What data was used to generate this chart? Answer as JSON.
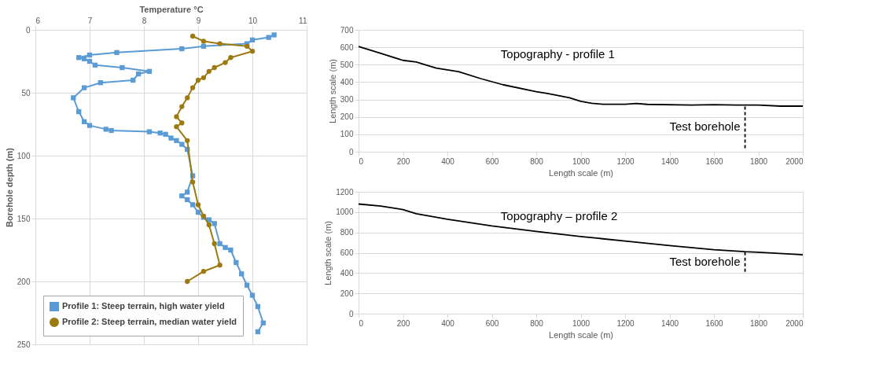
{
  "chart_data": [
    {
      "type": "line",
      "xlabel": "Temperature °C",
      "ylabel": "Borehole depth (m)",
      "xlim": [
        6,
        11
      ],
      "xticks": [
        6,
        7,
        8,
        9,
        10,
        11
      ],
      "ylim": [
        250,
        0
      ],
      "yticks": [
        0,
        50,
        100,
        150,
        200,
        250
      ],
      "grid": true,
      "legend": "bottom left",
      "series": [
        {
          "name": "Profile 1: Steep terrain, high water yield",
          "color": "#5b9bd5",
          "marker": "square",
          "x": [
            10.4,
            10.3,
            10.0,
            9.9,
            9.1,
            8.7,
            7.5,
            7.0,
            6.8,
            6.9,
            7.0,
            7.1,
            7.6,
            8.1,
            7.9,
            7.8,
            7.2,
            6.9,
            6.7,
            6.8,
            6.9,
            7.0,
            7.3,
            7.4,
            8.1,
            8.3,
            8.4,
            8.5,
            8.6,
            8.7,
            8.8,
            8.9,
            8.8,
            8.7,
            8.8,
            8.9,
            9.0,
            9.1,
            9.2,
            9.3,
            9.4,
            9.5,
            9.6,
            9.7,
            9.8,
            9.9,
            10.0,
            10.1,
            10.2,
            10.1
          ],
          "values": [
            4,
            6,
            8,
            11,
            13,
            15,
            18,
            20,
            22,
            23,
            25,
            28,
            30,
            33,
            35,
            40,
            42,
            46,
            54,
            65,
            73,
            76,
            79,
            80,
            81,
            82,
            83,
            86,
            88,
            91,
            95,
            116,
            129,
            132,
            135,
            139,
            145,
            149,
            151,
            154,
            170,
            173,
            175,
            185,
            194,
            203,
            211,
            220,
            233,
            240
          ]
        },
        {
          "name": "Profile 2: Steep terrain, median water yield",
          "color": "#9c7a10",
          "marker": "circle",
          "x": [
            8.9,
            9.1,
            9.4,
            9.9,
            10.0,
            9.6,
            9.5,
            9.3,
            9.2,
            9.1,
            9.0,
            8.9,
            8.8,
            8.7,
            8.6,
            8.7,
            8.6,
            8.8,
            8.9,
            9.0,
            9.1,
            9.2,
            9.3,
            9.4,
            9.1,
            8.8
          ],
          "values": [
            5,
            9,
            11,
            13,
            17,
            22,
            26,
            30,
            33,
            38,
            40,
            46,
            54,
            61,
            69,
            74,
            77,
            88,
            121,
            139,
            148,
            155,
            170,
            187,
            192,
            200
          ]
        }
      ]
    },
    {
      "type": "line",
      "xlabel": "Length scale (m)",
      "ylabel": "Length scale (m)",
      "xlim": [
        0,
        2000
      ],
      "xticks": [
        0,
        200,
        400,
        600,
        800,
        1000,
        1200,
        1400,
        1600,
        1800,
        2000
      ],
      "ylim": [
        0,
        700
      ],
      "yticks": [
        0,
        100,
        200,
        300,
        400,
        500,
        600,
        700
      ],
      "grid": "y",
      "series": [
        {
          "color": "#000000",
          "line_style": "solid",
          "x": [
            0,
            100,
            200,
            260,
            300,
            350,
            400,
            450,
            550,
            650,
            800,
            850,
            950,
            1000,
            1050,
            1100,
            1200,
            1250,
            1300,
            1500,
            1600,
            1700,
            1800,
            1900,
            2000
          ],
          "values": [
            605,
            565,
            525,
            515,
            500,
            480,
            470,
            460,
            420,
            385,
            345,
            335,
            310,
            290,
            278,
            273,
            273,
            277,
            272,
            268,
            270,
            268,
            268,
            262,
            262
          ]
        },
        {
          "color": "#000000",
          "line_style": "dashed",
          "x": [
            1740,
            1740
          ],
          "values": [
            20,
            268
          ]
        }
      ],
      "annotations": [
        "Topography - profile 1",
        "Test borehole"
      ]
    },
    {
      "type": "line",
      "xlabel": "Length scale (m)",
      "ylabel": "Length scale (m)",
      "xlim": [
        0,
        2000
      ],
      "xticks": [
        0,
        200,
        400,
        600,
        800,
        1000,
        1200,
        1400,
        1600,
        1800,
        2000
      ],
      "ylim": [
        0,
        1200
      ],
      "yticks": [
        0,
        200,
        400,
        600,
        800,
        1000,
        1200
      ],
      "grid": "y",
      "series": [
        {
          "color": "#000000",
          "line_style": "solid",
          "x": [
            0,
            100,
            200,
            260,
            400,
            600,
            800,
            1000,
            1200,
            1400,
            1600,
            1740,
            1800,
            2000
          ],
          "values": [
            1080,
            1060,
            1025,
            985,
            930,
            865,
            810,
            760,
            715,
            670,
            630,
            610,
            605,
            580
          ]
        },
        {
          "color": "#000000",
          "line_style": "dashed",
          "x": [
            1740,
            1740
          ],
          "values": [
            412,
            610
          ]
        }
      ],
      "annotations": [
        "Topography – profile 2",
        "Test borehole"
      ]
    }
  ]
}
